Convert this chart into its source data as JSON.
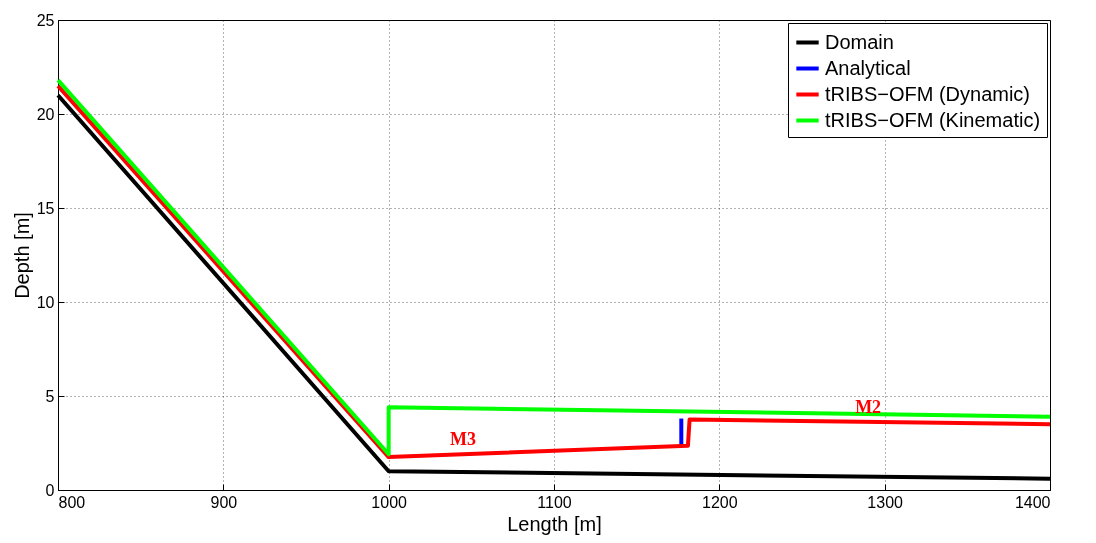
{
  "chart_data": {
    "type": "line",
    "xlabel": "Length [m]",
    "ylabel": "Depth [m]",
    "xlim": [
      800,
      1400
    ],
    "ylim": [
      0,
      25
    ],
    "xticks": [
      800,
      900,
      {
        "value": 1000,
        "label": "1000"
      },
      {
        "value": 1100,
        "label": "1100"
      },
      {
        "value": 1200,
        "label": "1200"
      },
      {
        "value": 1300,
        "label": "1300"
      },
      {
        "value": 1400,
        "label": "1400"
      }
    ],
    "yticks": [
      0,
      5,
      10,
      15,
      20,
      25
    ],
    "grid": true,
    "legend": "top right",
    "line_style": "solid",
    "marker": "none",
    "series": [
      {
        "name": "Domain",
        "color": "#000000",
        "x": [
          800,
          1000,
          1400
        ],
        "values": [
          21,
          1,
          0.6
        ]
      },
      {
        "name": "Analytical",
        "color": "#0000ff",
        "x": [
          1177,
          1177
        ],
        "values": [
          2.3,
          3.8
        ]
      },
      {
        "name": "tRIBS−OFM (Dynamic)",
        "color": "#ff0000",
        "x": [
          800,
          1000,
          1181,
          1182,
          1400
        ],
        "values": [
          21.5,
          1.75,
          2.35,
          3.75,
          3.5
        ]
      },
      {
        "name": "tRIBS−OFM (Kinematic)",
        "color": "#00ff00",
        "x": [
          800,
          1000,
          1000,
          1400
        ],
        "values": [
          21.8,
          1.9,
          4.4,
          3.9
        ]
      }
    ],
    "annotations": [
      {
        "text": "M3",
        "x": 1045,
        "y": 1.9
      },
      {
        "text": "M2",
        "x": 1290,
        "y": 3.63
      }
    ]
  }
}
